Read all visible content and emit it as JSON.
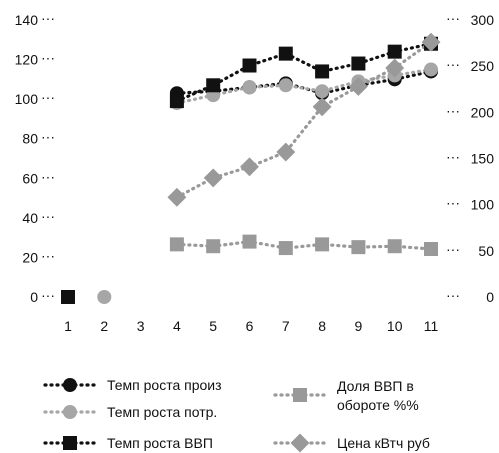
{
  "chart_data": {
    "type": "line",
    "title": "",
    "xlabel": "",
    "ylabel": "",
    "x": [
      1,
      2,
      3,
      4,
      5,
      6,
      7,
      8,
      9,
      10,
      11
    ],
    "xlim": [
      1,
      11
    ],
    "ylim_left": [
      0,
      140
    ],
    "ylim_right": [
      0,
      300
    ],
    "yticks_left": [
      0,
      20,
      40,
      60,
      80,
      100,
      120,
      140
    ],
    "yticks_right": [
      0,
      50,
      100,
      150,
      200,
      250,
      300
    ],
    "grid": false,
    "legend_position": "bottom",
    "series": [
      {
        "name": "Темп роста произ",
        "axis": "left",
        "marker": "circle",
        "color": "#111111",
        "line": "dotted",
        "values": [
          0,
          null,
          null,
          103,
          104,
          106,
          108,
          103,
          107,
          110,
          114
        ]
      },
      {
        "name": "Темп роста потр.",
        "axis": "left",
        "marker": "circle",
        "color": "#a6a6a6",
        "line": "dotted",
        "values": [
          0,
          0,
          null,
          98,
          102,
          106,
          107,
          104,
          109,
          112,
          115
        ]
      },
      {
        "name": "Темп роста ВВП",
        "axis": "left",
        "marker": "square",
        "color": "#111111",
        "line": "dotted",
        "values": [
          0,
          null,
          null,
          99,
          107,
          117,
          123,
          114,
          118,
          124,
          128
        ]
      },
      {
        "name": "Доля ВВП в обороте %%",
        "axis": "right",
        "marker": "square",
        "color": "#999999",
        "line": "dotted",
        "values": [
          null,
          null,
          null,
          57,
          55,
          60,
          53,
          57,
          54,
          55,
          52
        ]
      },
      {
        "name": "Цена кВтч руб",
        "axis": "right",
        "marker": "diamond",
        "color": "#999999",
        "line": "dotted",
        "values": [
          null,
          null,
          null,
          108,
          129,
          141,
          157,
          206,
          228,
          248,
          276
        ]
      }
    ]
  }
}
